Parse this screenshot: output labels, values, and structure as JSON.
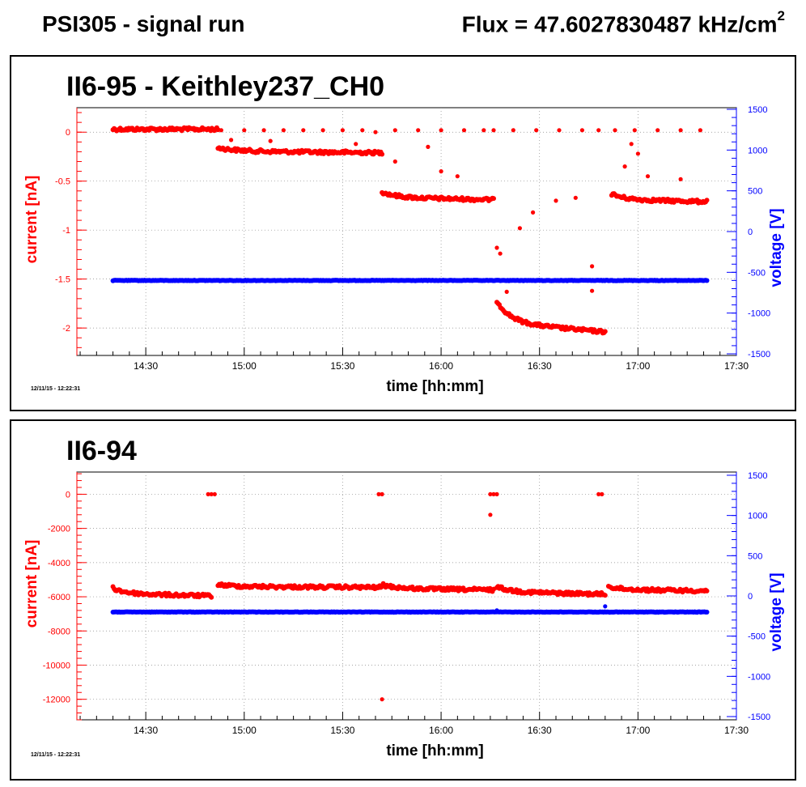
{
  "header": {
    "title": "PSI305 - signal run",
    "flux_text": "Flux = 47.6027830487 kHz/cm",
    "flux_sup": "2"
  },
  "colors": {
    "current": "#ff0000",
    "voltage": "#0000ff",
    "grid": "#888888"
  },
  "chart_data": [
    {
      "type": "scatter",
      "title": "II6-95 - Keithley237_CH0",
      "timestamp": "12/11/15 - 12:22:31",
      "xlabel": "time [hh:mm]",
      "ylabel": "current [nA]",
      "y2label": "voltage [V]",
      "xlim": [
        "14:09",
        "17:30"
      ],
      "xticks": [
        "14:30",
        "15:00",
        "15:30",
        "16:00",
        "16:30",
        "17:00",
        "17:30"
      ],
      "ylim": [
        -2.28,
        0.25
      ],
      "yticks": [
        "0",
        "-0.5",
        "-1",
        "-1.5",
        "-2"
      ],
      "yticks_values": [
        0,
        -0.5,
        -1,
        -1.5,
        -2
      ],
      "y2lim": [
        -1520,
        1520
      ],
      "y2ticks": [
        1500,
        1000,
        500,
        0,
        -500,
        -1000,
        -1500
      ],
      "grid": true,
      "series": [
        {
          "name": "current",
          "axis": "left",
          "segments": [
            {
              "t_start": "14:20",
              "t_end": "14:52",
              "y_start": 0.03,
              "y_end": 0.03
            },
            {
              "t_start": "14:52",
              "t_end": "15:42",
              "y_start": -0.16,
              "y_end": -0.21
            },
            {
              "t_start": "15:42",
              "t_end": "16:16",
              "y_start": -0.61,
              "y_end": -0.69
            },
            {
              "t_start": "16:17",
              "t_end": "16:50",
              "y_start": -1.72,
              "y_end": -2.04
            },
            {
              "t_start": "16:52",
              "t_end": "17:21",
              "y_start": -0.63,
              "y_end": -0.71
            }
          ],
          "outliers": [
            [
              "14:53",
              0.02
            ],
            [
              "15:00",
              0.02
            ],
            [
              "15:06",
              0.02
            ],
            [
              "15:12",
              0.02
            ],
            [
              "15:18",
              0.02
            ],
            [
              "15:24",
              0.02
            ],
            [
              "15:30",
              0.02
            ],
            [
              "15:36",
              0.02
            ],
            [
              "14:56",
              -0.08
            ],
            [
              "15:08",
              -0.09
            ],
            [
              "15:34",
              -0.12
            ],
            [
              "15:40",
              0.0
            ],
            [
              "15:46",
              0.02
            ],
            [
              "15:53",
              0.02
            ],
            [
              "16:00",
              0.02
            ],
            [
              "16:07",
              0.02
            ],
            [
              "16:13",
              0.02
            ],
            [
              "15:46",
              -0.3
            ],
            [
              "15:56",
              -0.15
            ],
            [
              "16:00",
              -0.4
            ],
            [
              "16:05",
              -0.45
            ],
            [
              "16:16",
              0.02
            ],
            [
              "16:22",
              0.02
            ],
            [
              "16:29",
              0.02
            ],
            [
              "16:36",
              0.02
            ],
            [
              "16:43",
              0.02
            ],
            [
              "16:48",
              0.02
            ],
            [
              "16:17",
              -1.18
            ],
            [
              "16:18",
              -1.24
            ],
            [
              "16:20",
              -1.63
            ],
            [
              "16:24",
              -0.98
            ],
            [
              "16:28",
              -0.82
            ],
            [
              "16:35",
              -0.7
            ],
            [
              "16:41",
              -0.67
            ],
            [
              "16:46",
              -1.37
            ],
            [
              "16:46",
              -1.62
            ],
            [
              "16:53",
              0.02
            ],
            [
              "16:59",
              0.02
            ],
            [
              "17:06",
              0.02
            ],
            [
              "17:13",
              0.02
            ],
            [
              "17:19",
              0.02
            ],
            [
              "16:56",
              -0.35
            ],
            [
              "17:03",
              -0.45
            ],
            [
              "17:13",
              -0.48
            ],
            [
              "16:58",
              -0.12
            ],
            [
              "17:00",
              -0.22
            ]
          ]
        },
        {
          "name": "voltage",
          "axis": "right",
          "segments": [
            {
              "t_start": "14:20",
              "t_end": "17:21",
              "y_start": -600,
              "y_end": -600
            }
          ],
          "outliers": []
        }
      ]
    },
    {
      "type": "scatter",
      "title": "II6-94",
      "timestamp": "12/11/15 - 12:22:31",
      "xlabel": "time [hh:mm]",
      "ylabel": "current [nA]",
      "y2label": "voltage [V]",
      "xlim": [
        "14:09",
        "17:30"
      ],
      "xticks": [
        "14:30",
        "15:00",
        "15:30",
        "16:00",
        "16:30",
        "17:00",
        "17:30"
      ],
      "ylim": [
        -13200,
        1300
      ],
      "yticks": [
        "0",
        "-2000",
        "-4000",
        "-6000",
        "-8000",
        "-10000",
        "-12000"
      ],
      "yticks_values": [
        0,
        -2000,
        -4000,
        -6000,
        -8000,
        -10000,
        -12000
      ],
      "y2lim": [
        -1540,
        1540
      ],
      "y2ticks": [
        1500,
        1000,
        500,
        0,
        -500,
        -1000,
        -1500
      ],
      "grid": true,
      "series": [
        {
          "name": "current",
          "axis": "left",
          "segments": [
            {
              "t_start": "14:20",
              "t_end": "14:50",
              "y_start": -5500,
              "y_end": -5950
            },
            {
              "t_start": "14:52",
              "t_end": "15:42",
              "y_start": -5300,
              "y_end": -5450
            },
            {
              "t_start": "15:42",
              "t_end": "16:16",
              "y_start": -5300,
              "y_end": -5600
            },
            {
              "t_start": "16:17",
              "t_end": "16:50",
              "y_start": -5400,
              "y_end": -5850
            },
            {
              "t_start": "16:51",
              "t_end": "17:21",
              "y_start": -5400,
              "y_end": -5650
            }
          ],
          "outliers": [
            [
              "14:49",
              0
            ],
            [
              "14:50",
              0
            ],
            [
              "14:51",
              0
            ],
            [
              "15:41",
              0
            ],
            [
              "15:42",
              0
            ],
            [
              "16:15",
              0
            ],
            [
              "16:16",
              0
            ],
            [
              "16:17",
              0
            ],
            [
              "16:48",
              0
            ],
            [
              "16:49",
              0
            ],
            [
              "16:15",
              -1200
            ],
            [
              "15:42",
              -12000
            ]
          ]
        },
        {
          "name": "voltage",
          "axis": "right",
          "segments": [
            {
              "t_start": "14:20",
              "t_end": "17:21",
              "y_start": -200,
              "y_end": -200
            }
          ],
          "outliers": [
            [
              "16:17",
              -180
            ],
            [
              "16:50",
              -130
            ]
          ]
        }
      ]
    }
  ]
}
